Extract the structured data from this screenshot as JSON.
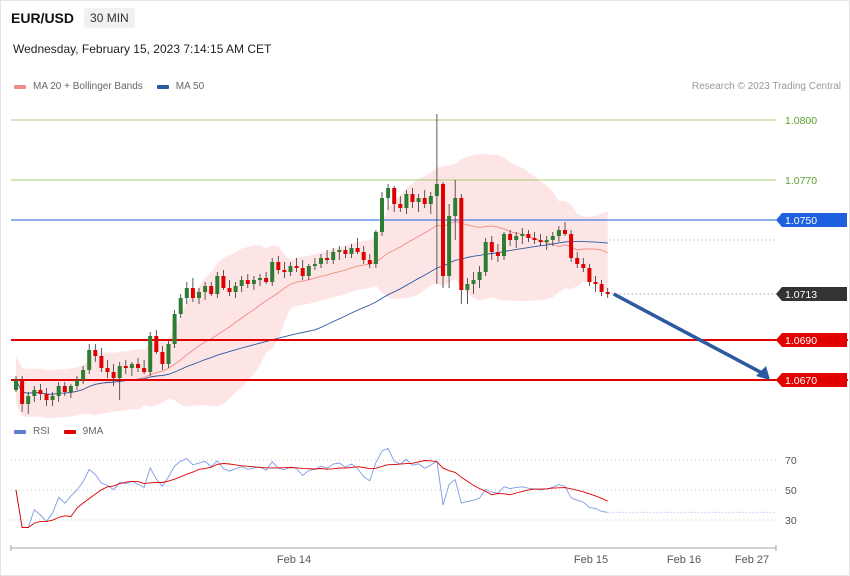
{
  "header": {
    "symbol": "EUR/USD",
    "timeframe": "30 MIN"
  },
  "datetime": "Wednesday, February 15, 2023 7:14:15 AM CET",
  "copyright": "Research © 2023 Trading Central",
  "legend_price": [
    {
      "label": "MA 20 + Bollinger Bands",
      "color": "#f28b82"
    },
    {
      "label": "MA 50",
      "color": "#2c5aa0"
    }
  ],
  "legend_rsi": [
    {
      "label": "RSI",
      "color": "#5b7fd6"
    },
    {
      "label": "9MA",
      "color": "#e00000"
    }
  ],
  "colors": {
    "bull": "#2e7d32",
    "bear": "#e00000",
    "band_fill": "#fde0e0",
    "ma20": "#f28b82",
    "ma50": "#2c5aa0",
    "target": "#2c5aa0",
    "support": "#e00000",
    "resistance_green": "#8bc34a",
    "pivot": "#1e5fe0",
    "current": "#333333"
  },
  "chart_data": [
    {
      "type": "candlestick",
      "ylim": [
        1.0655,
        1.0815
      ],
      "x_labels": [
        "Feb 14",
        "Feb 15",
        "Feb 16",
        "Feb 27"
      ],
      "levels": [
        {
          "value": 1.08,
          "label": "1.0800",
          "kind": "resistance"
        },
        {
          "value": 1.077,
          "label": "1.0770",
          "kind": "resistance"
        },
        {
          "value": 1.075,
          "label": "1.0750",
          "kind": "pivot"
        },
        {
          "value": 1.0713,
          "label": "1.0713",
          "kind": "current"
        },
        {
          "value": 1.069,
          "label": "1.0690",
          "kind": "support"
        },
        {
          "value": 1.067,
          "label": "1.0670",
          "kind": "support"
        }
      ],
      "target_arrow": {
        "from": 1.0713,
        "to": 1.067
      },
      "candles": [
        [
          1.0665,
          1.0672,
          1.0664,
          1.067
        ],
        [
          1.067,
          1.0672,
          1.0654,
          1.0658
        ],
        [
          1.0658,
          1.0664,
          1.0653,
          1.0662
        ],
        [
          1.0662,
          1.0667,
          1.0659,
          1.0665
        ],
        [
          1.0665,
          1.0668,
          1.066,
          1.0663
        ],
        [
          1.0663,
          1.0666,
          1.0657,
          1.066
        ],
        [
          1.066,
          1.0664,
          1.0657,
          1.0662
        ],
        [
          1.0662,
          1.0669,
          1.0659,
          1.0667
        ],
        [
          1.0667,
          1.0669,
          1.0662,
          1.0664
        ],
        [
          1.0664,
          1.0668,
          1.0661,
          1.0667
        ],
        [
          1.0667,
          1.0672,
          1.0665,
          1.067
        ],
        [
          1.067,
          1.0677,
          1.0668,
          1.0675
        ],
        [
          1.0675,
          1.0688,
          1.0673,
          1.0685
        ],
        [
          1.0685,
          1.0688,
          1.0679,
          1.0682
        ],
        [
          1.0682,
          1.0686,
          1.0674,
          1.0676
        ],
        [
          1.0676,
          1.068,
          1.0671,
          1.0674
        ],
        [
          1.0674,
          1.0678,
          1.0667,
          1.0671
        ],
        [
          1.0671,
          1.0679,
          1.066,
          1.0677
        ],
        [
          1.0677,
          1.068,
          1.0673,
          1.0676
        ],
        [
          1.0676,
          1.0679,
          1.0672,
          1.0678
        ],
        [
          1.0678,
          1.0681,
          1.0674,
          1.0676
        ],
        [
          1.0676,
          1.068,
          1.0673,
          1.0674
        ],
        [
          1.0674,
          1.0694,
          1.0672,
          1.0692
        ],
        [
          1.0692,
          1.0695,
          1.0683,
          1.0684
        ],
        [
          1.0684,
          1.0687,
          1.0675,
          1.0678
        ],
        [
          1.0678,
          1.069,
          1.0676,
          1.0688
        ],
        [
          1.0688,
          1.0705,
          1.0686,
          1.0703
        ],
        [
          1.0703,
          1.0713,
          1.0701,
          1.0711
        ],
        [
          1.0711,
          1.0719,
          1.0708,
          1.0716
        ],
        [
          1.0716,
          1.0721,
          1.0709,
          1.0711
        ],
        [
          1.0711,
          1.0716,
          1.0708,
          1.0714
        ],
        [
          1.0714,
          1.0719,
          1.071,
          1.0717
        ],
        [
          1.0717,
          1.0719,
          1.0712,
          1.0713
        ],
        [
          1.0713,
          1.0724,
          1.0711,
          1.0722
        ],
        [
          1.0722,
          1.0725,
          1.0715,
          1.0716
        ],
        [
          1.0716,
          1.072,
          1.0712,
          1.0714
        ],
        [
          1.0714,
          1.0719,
          1.0711,
          1.0717
        ],
        [
          1.0717,
          1.0722,
          1.0714,
          1.072
        ],
        [
          1.072,
          1.0723,
          1.0716,
          1.0718
        ],
        [
          1.0718,
          1.0722,
          1.0715,
          1.072
        ],
        [
          1.072,
          1.0723,
          1.0717,
          1.0721
        ],
        [
          1.0721,
          1.0724,
          1.0718,
          1.0719
        ],
        [
          1.0719,
          1.0731,
          1.0717,
          1.0729
        ],
        [
          1.0729,
          1.0732,
          1.0723,
          1.0725
        ],
        [
          1.0725,
          1.0729,
          1.0721,
          1.0724
        ],
        [
          1.0724,
          1.0729,
          1.0722,
          1.0727
        ],
        [
          1.0727,
          1.0731,
          1.0724,
          1.0726
        ],
        [
          1.0726,
          1.073,
          1.072,
          1.0722
        ],
        [
          1.0722,
          1.0728,
          1.072,
          1.0727
        ],
        [
          1.0727,
          1.0731,
          1.0725,
          1.0728
        ],
        [
          1.0728,
          1.0733,
          1.0726,
          1.0731
        ],
        [
          1.0731,
          1.0735,
          1.0728,
          1.073
        ],
        [
          1.073,
          1.0736,
          1.0728,
          1.0734
        ],
        [
          1.0734,
          1.0737,
          1.073,
          1.0735
        ],
        [
          1.0735,
          1.0737,
          1.0731,
          1.0733
        ],
        [
          1.0733,
          1.0738,
          1.0731,
          1.0736
        ],
        [
          1.0736,
          1.0741,
          1.0733,
          1.0734
        ],
        [
          1.0734,
          1.0737,
          1.0728,
          1.073
        ],
        [
          1.073,
          1.0733,
          1.0726,
          1.0728
        ],
        [
          1.0728,
          1.0745,
          1.0726,
          1.0744
        ],
        [
          1.0744,
          1.0764,
          1.0742,
          1.0761
        ],
        [
          1.0761,
          1.0768,
          1.0755,
          1.0766
        ],
        [
          1.0766,
          1.0767,
          1.0754,
          1.0758
        ],
        [
          1.0758,
          1.0762,
          1.0754,
          1.0756
        ],
        [
          1.0756,
          1.0765,
          1.0753,
          1.0763
        ],
        [
          1.0763,
          1.0766,
          1.0756,
          1.0759
        ],
        [
          1.0759,
          1.0763,
          1.0754,
          1.0761
        ],
        [
          1.0761,
          1.0765,
          1.0756,
          1.0758
        ],
        [
          1.0758,
          1.0764,
          1.0753,
          1.0762
        ],
        [
          1.0762,
          1.0803,
          1.0718,
          1.0768
        ],
        [
          1.0768,
          1.0769,
          1.0716,
          1.0722
        ],
        [
          1.0722,
          1.0758,
          1.0716,
          1.0752
        ],
        [
          1.0752,
          1.077,
          1.074,
          1.0761
        ],
        [
          1.0761,
          1.0763,
          1.0708,
          1.0715
        ],
        [
          1.0715,
          1.0721,
          1.0708,
          1.0718
        ],
        [
          1.0718,
          1.0724,
          1.0713,
          1.072
        ],
        [
          1.072,
          1.0727,
          1.0716,
          1.0724
        ],
        [
          1.0724,
          1.0741,
          1.0722,
          1.0739
        ],
        [
          1.0739,
          1.0742,
          1.073,
          1.0734
        ],
        [
          1.0734,
          1.0738,
          1.0729,
          1.0732
        ],
        [
          1.0732,
          1.0744,
          1.073,
          1.0743
        ],
        [
          1.0743,
          1.0745,
          1.0737,
          1.074
        ],
        [
          1.074,
          1.0744,
          1.0736,
          1.0742
        ],
        [
          1.0742,
          1.0746,
          1.0738,
          1.0743
        ],
        [
          1.0743,
          1.0745,
          1.0739,
          1.0741
        ],
        [
          1.0741,
          1.0744,
          1.0738,
          1.074
        ],
        [
          1.074,
          1.0743,
          1.0737,
          1.0739
        ],
        [
          1.0739,
          1.0742,
          1.0735,
          1.074
        ],
        [
          1.074,
          1.0744,
          1.0737,
          1.0742
        ],
        [
          1.0742,
          1.0747,
          1.0739,
          1.0745
        ],
        [
          1.0745,
          1.0749,
          1.0742,
          1.0743
        ],
        [
          1.0743,
          1.0745,
          1.0729,
          1.0731
        ],
        [
          1.0731,
          1.0734,
          1.0726,
          1.0728
        ],
        [
          1.0728,
          1.0731,
          1.0724,
          1.0726
        ],
        [
          1.0726,
          1.0728,
          1.0717,
          1.0719
        ],
        [
          1.0719,
          1.0722,
          1.0714,
          1.0718
        ],
        [
          1.0718,
          1.072,
          1.0712,
          1.0714
        ],
        [
          1.0714,
          1.0716,
          1.0711,
          1.0713
        ]
      ]
    },
    {
      "type": "line",
      "name": "RSI",
      "yticks": [
        70,
        50,
        30
      ],
      "ylim": [
        20,
        80
      ]
    }
  ]
}
